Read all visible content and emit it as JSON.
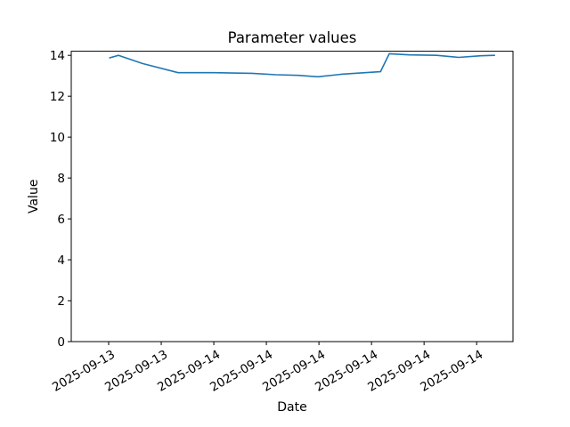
{
  "chart_data": {
    "type": "line",
    "title": "Parameter values",
    "xlabel": "Date",
    "ylabel": "Value",
    "ylim": [
      0,
      14.2
    ],
    "yticks": [
      0,
      2,
      4,
      6,
      8,
      10,
      12,
      14
    ],
    "xticks": [
      {
        "pos": 0.0847,
        "label": "2025-09-13"
      },
      {
        "pos": 0.2037,
        "label": "2025-09-13"
      },
      {
        "pos": 0.3227,
        "label": "2025-09-14"
      },
      {
        "pos": 0.4417,
        "label": "2025-09-14"
      },
      {
        "pos": 0.5607,
        "label": "2025-09-14"
      },
      {
        "pos": 0.6797,
        "label": "2025-09-14"
      },
      {
        "pos": 0.7987,
        "label": "2025-09-14"
      },
      {
        "pos": 0.9177,
        "label": "2025-09-14"
      }
    ],
    "xtick_rotation_deg": 30,
    "grid": false,
    "legend": null,
    "line_color": "#1f77b4",
    "axis_color": "#000000",
    "background_color": "#ffffff",
    "series": [
      {
        "name": "Parameter values",
        "x_unit": "fraction-of-x-axis",
        "points": [
          [
            0.087,
            13.88
          ],
          [
            0.107,
            14.0
          ],
          [
            0.161,
            13.6
          ],
          [
            0.242,
            13.15
          ],
          [
            0.323,
            13.15
          ],
          [
            0.409,
            13.12
          ],
          [
            0.464,
            13.05
          ],
          [
            0.514,
            13.02
          ],
          [
            0.558,
            12.95
          ],
          [
            0.615,
            13.08
          ],
          [
            0.665,
            13.15
          ],
          [
            0.7,
            13.2
          ],
          [
            0.72,
            14.08
          ],
          [
            0.766,
            14.02
          ],
          [
            0.827,
            14.0
          ],
          [
            0.877,
            13.9
          ],
          [
            0.927,
            13.98
          ],
          [
            0.958,
            14.0
          ]
        ]
      }
    ]
  }
}
